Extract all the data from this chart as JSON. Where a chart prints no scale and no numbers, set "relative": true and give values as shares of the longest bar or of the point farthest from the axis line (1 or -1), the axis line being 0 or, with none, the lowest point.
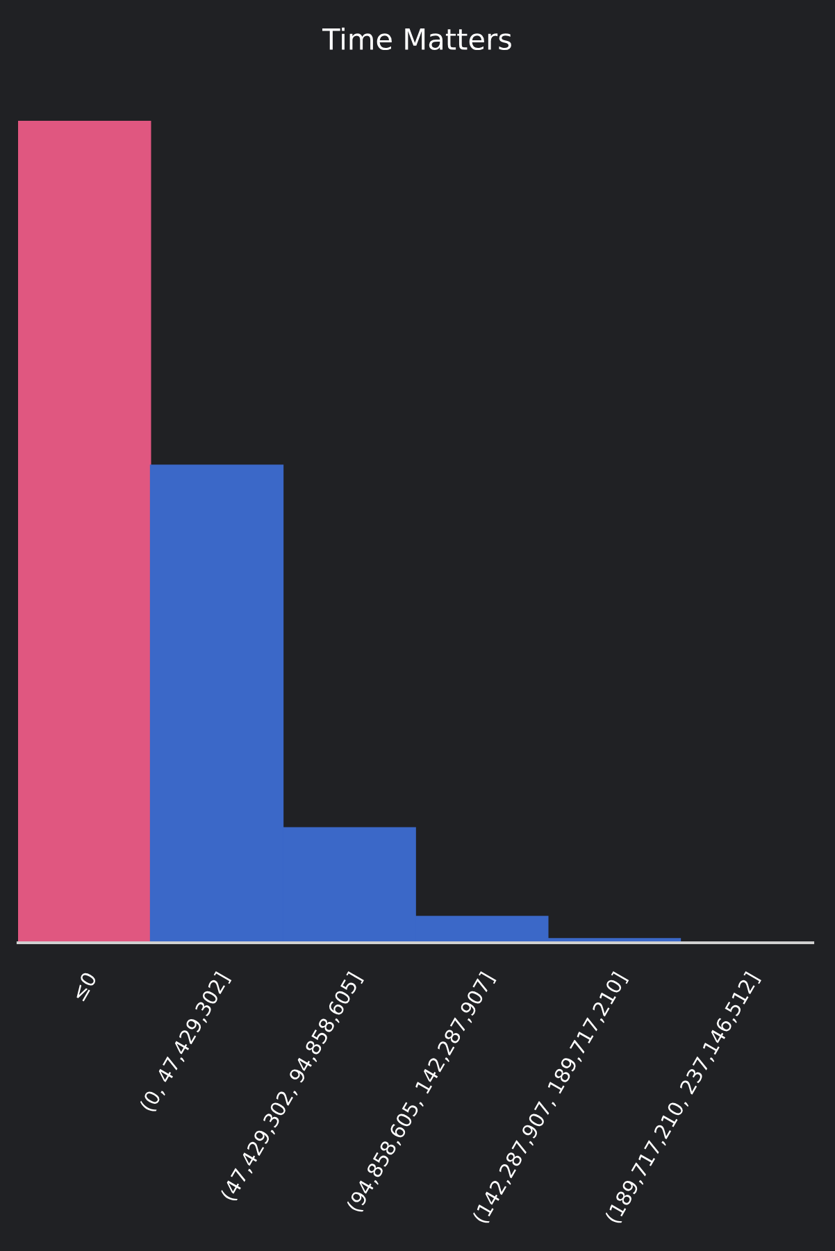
{
  "chart_data": {
    "type": "bar",
    "title": "Time Matters",
    "relative": true,
    "categories": [
      "≤0",
      "(0, 47,429,302]",
      "(47,429,302, 94,858,605]",
      "(94,858,605, 142,287,907]",
      "(142,287,907, 189,717,210]",
      "(189,717,210, 237,146,512]"
    ],
    "values": [
      1,
      0.581,
      0.14,
      0.032,
      0.005,
      0
    ],
    "colors": [
      "#e05780",
      "#3b68c8",
      "#3b68c8",
      "#3b68c8",
      "#3b68c8",
      "#3b68c8"
    ],
    "grid": false,
    "legend": false
  }
}
